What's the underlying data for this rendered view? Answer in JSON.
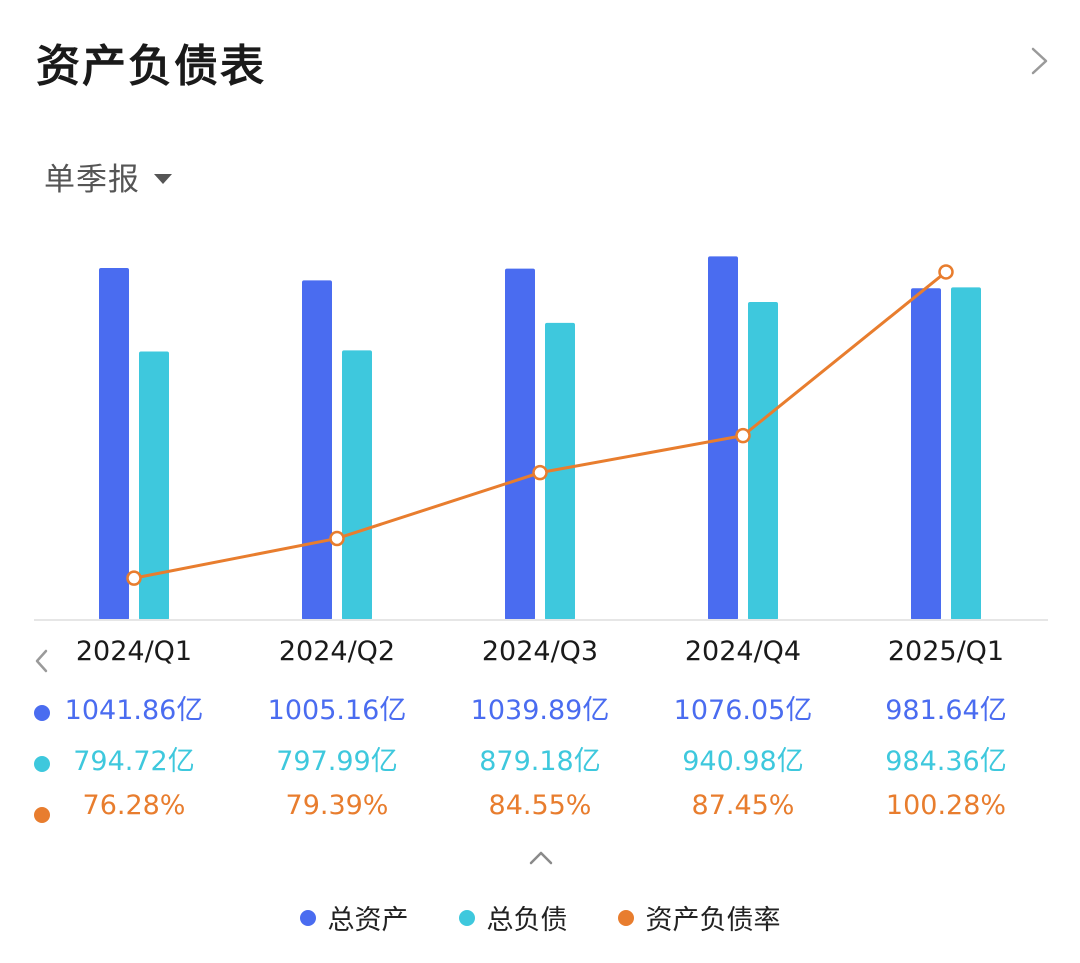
{
  "header": {
    "title": "资产负债表"
  },
  "period_selector": {
    "label": "单季报"
  },
  "colors": {
    "assets": "#4a6cf0",
    "liabilities": "#3ec8dd",
    "ratio": "#e87d2e"
  },
  "table": {
    "quarters": [
      "2024/Q1",
      "2024/Q2",
      "2024/Q3",
      "2024/Q4",
      "2025/Q1"
    ],
    "assets": [
      "1041.86亿",
      "1005.16亿",
      "1039.89亿",
      "1076.05亿",
      "981.64亿"
    ],
    "liabilities": [
      "794.72亿",
      "797.99亿",
      "879.18亿",
      "940.98亿",
      "984.36亿"
    ],
    "ratios": [
      "76.28%",
      "79.39%",
      "84.55%",
      "87.45%",
      "100.28%"
    ]
  },
  "legend": {
    "assets": "总资产",
    "liabilities": "总负债",
    "ratio": "资产负债率"
  },
  "chart_data": {
    "type": "bar",
    "categories": [
      "2024/Q1",
      "2024/Q2",
      "2024/Q3",
      "2024/Q4",
      "2025/Q1"
    ],
    "series": [
      {
        "name": "总资产",
        "type": "bar",
        "unit": "亿",
        "values": [
          1041.86,
          1005.16,
          1039.89,
          1076.05,
          981.64
        ]
      },
      {
        "name": "总负债",
        "type": "bar",
        "unit": "亿",
        "values": [
          794.72,
          797.99,
          879.18,
          940.98,
          984.36
        ]
      },
      {
        "name": "资产负债率",
        "type": "line",
        "unit": "%",
        "values": [
          76.28,
          79.39,
          84.55,
          87.45,
          100.28
        ]
      }
    ],
    "bar_ylim": [
      0,
      1095
    ],
    "line_ylim": [
      73,
      102
    ],
    "grid": false,
    "legend_position": "bottom"
  }
}
